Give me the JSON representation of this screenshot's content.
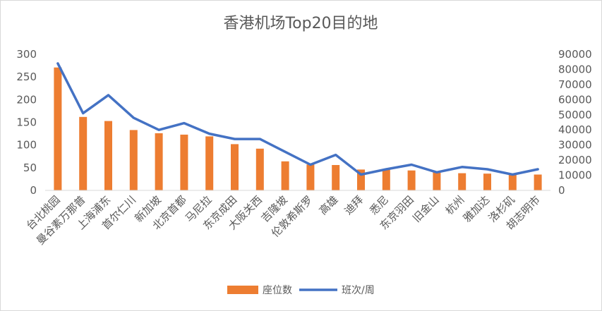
{
  "chart_data": {
    "type": "bar",
    "title": "香港机场Top20目的地",
    "categories": [
      "台北桃园",
      "曼谷素万那普",
      "上海浦东",
      "首尔仁川",
      "新加坡",
      "北京首都",
      "马尼拉",
      "东京成田",
      "大阪关西",
      "吉隆坡",
      "伦敦希斯罗",
      "高雄",
      "迪拜",
      "悉尼",
      "东京羽田",
      "旧金山",
      "杭州",
      "雅加达",
      "洛杉矶",
      "胡志明市"
    ],
    "series": [
      {
        "name": "座位数",
        "kind": "bar",
        "axis": "left",
        "color": "#ed7d31",
        "values": [
          271,
          162,
          153,
          133,
          126,
          123,
          119,
          102,
          92,
          64,
          57,
          56,
          46,
          46,
          44,
          40,
          38,
          37,
          36,
          35
        ]
      },
      {
        "name": "班次/周",
        "kind": "line",
        "axis": "right",
        "color": "#4472c4",
        "values": [
          84000,
          51000,
          63000,
          48000,
          40000,
          44500,
          37500,
          34000,
          34000,
          25500,
          17000,
          23500,
          10500,
          14000,
          17000,
          12000,
          15500,
          14000,
          10500,
          14000
        ]
      }
    ],
    "y_left": {
      "min": 0,
      "max": 300,
      "ticks": [
        0,
        50,
        100,
        150,
        200,
        250,
        300
      ]
    },
    "y_right": {
      "min": 0,
      "max": 90000,
      "ticks": [
        0,
        10000,
        20000,
        30000,
        40000,
        50000,
        60000,
        70000,
        80000,
        90000
      ]
    },
    "legend_position": "bottom",
    "grid": false
  }
}
